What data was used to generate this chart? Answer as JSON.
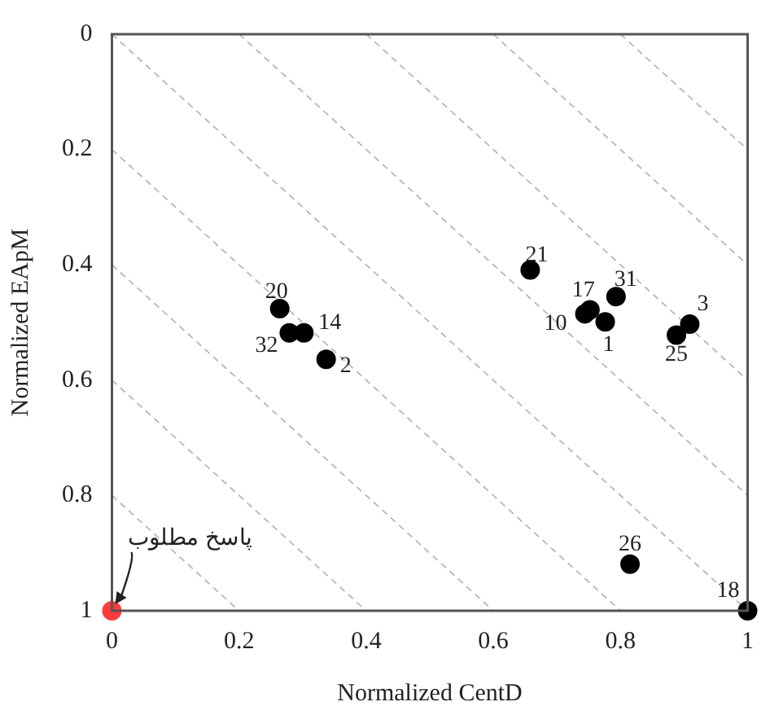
{
  "chart_data": {
    "type": "scatter",
    "xlabel": "Normalized CentD",
    "ylabel": "Normalized EApM",
    "xlim": [
      0,
      1
    ],
    "ylim": [
      1,
      0
    ],
    "xticks": [
      0,
      0.2,
      0.4,
      0.6,
      0.8,
      1
    ],
    "yticks": [
      0,
      0.2,
      0.4,
      0.6,
      0.8,
      1
    ],
    "grid": false,
    "legend": false,
    "marker": "circle",
    "series": [
      {
        "color": "#000000",
        "x": [
          0.658,
          0.264,
          0.279,
          0.302,
          0.337,
          0.744,
          0.752,
          0.793,
          0.776,
          0.909,
          0.888,
          0.815,
          1
        ],
        "values": [
          0.409,
          0.476,
          0.518,
          0.518,
          0.564,
          0.485,
          0.478,
          0.455,
          0.499,
          0.503,
          0.522,
          0.919,
          1
        ]
      },
      {
        "color": "#ff3b3b",
        "x": [
          0
        ],
        "values": [
          1
        ]
      },
      {
        "type": "line",
        "color": "#b0b0b0",
        "line_style": "dashed",
        "marker": "none",
        "x": [
          0,
          0.2
        ],
        "values": [
          0.8,
          1
        ]
      },
      {
        "type": "line",
        "color": "#b0b0b0",
        "line_style": "dashed",
        "marker": "none",
        "x": [
          0,
          0.4
        ],
        "values": [
          0.6,
          1
        ]
      },
      {
        "type": "line",
        "color": "#b0b0b0",
        "line_style": "dashed",
        "marker": "none",
        "x": [
          0,
          0.6
        ],
        "values": [
          0.4,
          1
        ]
      },
      {
        "type": "line",
        "color": "#b0b0b0",
        "line_style": "dashed",
        "marker": "none",
        "x": [
          0,
          0.8
        ],
        "values": [
          0.2,
          1
        ]
      },
      {
        "type": "line",
        "color": "#b0b0b0",
        "line_style": "dashed",
        "marker": "none",
        "x": [
          0,
          1
        ],
        "values": [
          0,
          1
        ]
      },
      {
        "type": "line",
        "color": "#b0b0b0",
        "line_style": "dashed",
        "marker": "none",
        "x": [
          0.2,
          1
        ],
        "values": [
          0,
          0.8
        ]
      },
      {
        "type": "line",
        "color": "#b0b0b0",
        "line_style": "dashed",
        "marker": "none",
        "x": [
          0.4,
          1
        ],
        "values": [
          0,
          0.6
        ]
      },
      {
        "type": "line",
        "color": "#b0b0b0",
        "line_style": "dashed",
        "marker": "none",
        "x": [
          0.6,
          1
        ],
        "values": [
          0,
          0.4
        ]
      },
      {
        "type": "line",
        "color": "#b0b0b0",
        "line_style": "dashed",
        "marker": "none",
        "x": [
          0.8,
          1
        ],
        "values": [
          0,
          0.2
        ]
      }
    ],
    "annotations": [
      {
        "text": "21",
        "x": 0.658,
        "y": 0.409
      },
      {
        "text": "20",
        "x": 0.264,
        "y": 0.476
      },
      {
        "text": "32",
        "x": 0.279,
        "y": 0.518
      },
      {
        "text": "14",
        "x": 0.302,
        "y": 0.518
      },
      {
        "text": "2",
        "x": 0.337,
        "y": 0.564
      },
      {
        "text": "17",
        "x": 0.752,
        "y": 0.478
      },
      {
        "text": "10",
        "x": 0.744,
        "y": 0.485
      },
      {
        "text": "31",
        "x": 0.793,
        "y": 0.455
      },
      {
        "text": "1",
        "x": 0.776,
        "y": 0.499
      },
      {
        "text": "3",
        "x": 0.909,
        "y": 0.503
      },
      {
        "text": "25",
        "x": 0.888,
        "y": 0.522
      },
      {
        "text": "26",
        "x": 0.815,
        "y": 0.919
      },
      {
        "text": "18",
        "x": 1,
        "y": 1
      },
      {
        "text": "پاسخ مطلوب",
        "x": 0,
        "y": 1
      }
    ]
  }
}
